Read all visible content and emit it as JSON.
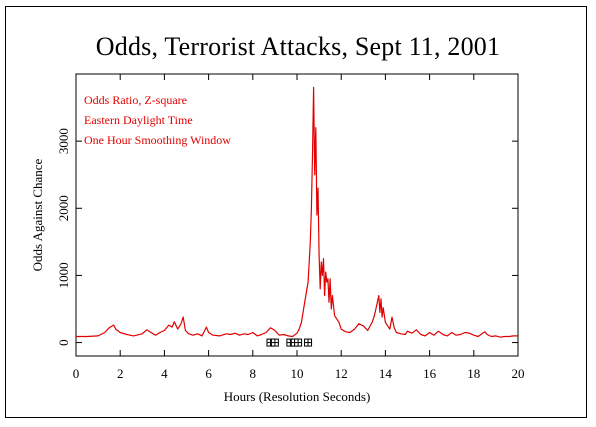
{
  "chart_data": {
    "type": "line",
    "title": "Odds, Terrorist Attacks, Sept 11, 2001",
    "xlabel": "Hours (Resolution Seconds)",
    "ylabel": "Odds Against Chance",
    "xlim": [
      0,
      20
    ],
    "ylim": [
      -200,
      4000
    ],
    "x_ticks": [
      0,
      2,
      4,
      6,
      8,
      10,
      12,
      14,
      16,
      18,
      20
    ],
    "y_ticks": [
      0,
      1000,
      2000,
      3000
    ],
    "grid": false,
    "line_color": "#e00000",
    "annotations": [
      "Odds Ratio, Z-square",
      "Eastern Daylight Time",
      "One Hour Smoothing Window"
    ],
    "event_markers_x": [
      8.8,
      9.0,
      9.7,
      9.9,
      10.05,
      10.5
    ],
    "series": [
      {
        "x": [
          0,
          0.5,
          1.0,
          1.3,
          1.5,
          1.7,
          1.8,
          2.0,
          2.3,
          2.6,
          3.0,
          3.2,
          3.4,
          3.6,
          3.8,
          4.0,
          4.2,
          4.35,
          4.45,
          4.6,
          4.75,
          4.85,
          4.95,
          5.1,
          5.3,
          5.5,
          5.7,
          5.9,
          6.0,
          6.2,
          6.5,
          6.8,
          7.0,
          7.2,
          7.4,
          7.6,
          7.8,
          8.0,
          8.2,
          8.4,
          8.6,
          8.8,
          9.0,
          9.2,
          9.4,
          9.6,
          9.8,
          10.0,
          10.1,
          10.2,
          10.3,
          10.4,
          10.5,
          10.55,
          10.6,
          10.65,
          10.7,
          10.75,
          10.8,
          10.85,
          10.9,
          10.95,
          11.0,
          11.05,
          11.1,
          11.15,
          11.2,
          11.25,
          11.3,
          11.35,
          11.4,
          11.45,
          11.5,
          11.55,
          11.6,
          11.7,
          11.8,
          11.9,
          12.0,
          12.2,
          12.4,
          12.6,
          12.8,
          13.0,
          13.2,
          13.4,
          13.5,
          13.6,
          13.7,
          13.75,
          13.8,
          13.85,
          13.9,
          14.0,
          14.1,
          14.2,
          14.3,
          14.4,
          14.5,
          14.7,
          14.9,
          15.0,
          15.2,
          15.4,
          15.6,
          15.8,
          16.0,
          16.2,
          16.4,
          16.6,
          16.8,
          17.0,
          17.2,
          17.4,
          17.6,
          17.8,
          18.0,
          18.2,
          18.4,
          18.5,
          18.6,
          18.8,
          19.0,
          19.2,
          19.4,
          19.6,
          19.8,
          20.0
        ],
        "y": [
          90,
          90,
          100,
          150,
          220,
          260,
          200,
          150,
          120,
          100,
          130,
          190,
          150,
          110,
          150,
          180,
          260,
          230,
          310,
          200,
          280,
          380,
          180,
          130,
          110,
          130,
          100,
          230,
          150,
          110,
          100,
          130,
          120,
          140,
          110,
          130,
          120,
          150,
          100,
          120,
          150,
          220,
          180,
          110,
          120,
          100,
          90,
          140,
          200,
          300,
          500,
          700,
          900,
          1200,
          1500,
          2000,
          2800,
          3800,
          2500,
          3200,
          1900,
          2300,
          1300,
          800,
          1200,
          1000,
          1250,
          700,
          1050,
          900,
          950,
          600,
          950,
          500,
          700,
          400,
          350,
          300,
          200,
          160,
          150,
          200,
          280,
          250,
          180,
          300,
          400,
          550,
          700,
          450,
          650,
          380,
          520,
          300,
          250,
          200,
          380,
          220,
          150,
          130,
          120,
          170,
          140,
          190,
          120,
          100,
          150,
          110,
          170,
          120,
          100,
          150,
          110,
          120,
          150,
          140,
          110,
          90,
          140,
          160,
          120,
          90,
          100,
          80,
          90,
          90,
          100,
          100
        ]
      }
    ]
  }
}
